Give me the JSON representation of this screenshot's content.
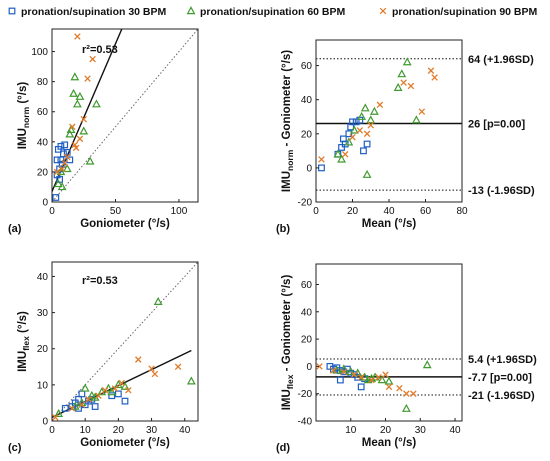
{
  "legend": {
    "items": [
      {
        "label": "pronation/supination 30 BPM",
        "marker": "square",
        "color": "#1f5fc4"
      },
      {
        "label": "pronation/supination 60 BPM",
        "marker": "triangle",
        "color": "#3f9a2f"
      },
      {
        "label": "pronation/supination 90 BPM",
        "marker": "cross",
        "color": "#e07b2a"
      }
    ]
  },
  "chart_data": [
    {
      "panel": "(a)",
      "type": "scatter",
      "xlabel": "Goniometer (°/s)",
      "ylabel_main": "IMU",
      "ylabel_sub": "norm",
      "ylabel_tail": " (°/s)",
      "xlim": [
        0,
        115
      ],
      "ylim": [
        0,
        115
      ],
      "xticks": [
        0,
        50,
        100
      ],
      "yticks": [
        0,
        20,
        40,
        60,
        80,
        100
      ],
      "annotation": "r²=0.53",
      "fit_line": [
        [
          0,
          7
        ],
        [
          55,
          115
        ]
      ],
      "identity_line": true,
      "series": [
        {
          "marker": "square",
          "points": [
            [
              3,
              3
            ],
            [
              4,
              28
            ],
            [
              5,
              35
            ],
            [
              6,
              22
            ],
            [
              7,
              37
            ],
            [
              8,
              25
            ],
            [
              6,
              15
            ],
            [
              10,
              38
            ],
            [
              12,
              33
            ],
            [
              14,
              28
            ],
            [
              9,
              32
            ],
            [
              4,
              18
            ],
            [
              7,
              28
            ]
          ]
        },
        {
          "marker": "triangle",
          "points": [
            [
              5,
              12
            ],
            [
              7,
              20
            ],
            [
              8,
              10
            ],
            [
              12,
              22
            ],
            [
              14,
              45
            ],
            [
              15,
              48
            ],
            [
              17,
              72
            ],
            [
              18,
              83
            ],
            [
              20,
              65
            ],
            [
              22,
              70
            ],
            [
              25,
              47
            ],
            [
              30,
              27
            ],
            [
              35,
              65
            ]
          ]
        },
        {
          "marker": "cross",
          "points": [
            [
              4,
              20
            ],
            [
              8,
              22
            ],
            [
              12,
              30
            ],
            [
              16,
              50
            ],
            [
              18,
              38
            ],
            [
              20,
              110
            ],
            [
              22,
              42
            ],
            [
              25,
              55
            ],
            [
              28,
              82
            ],
            [
              32,
              95
            ],
            [
              19,
              36
            ],
            [
              10,
              26
            ]
          ]
        }
      ]
    },
    {
      "panel": "(b)",
      "type": "scatter",
      "xlabel": "Mean (°/s)",
      "ylabel_main": "IMU",
      "ylabel_sub": "norm",
      "ylabel_tail": " - Goniometer (°/s)",
      "xlim": [
        0,
        80
      ],
      "ylim": [
        -20,
        75
      ],
      "xticks": [
        0,
        20,
        40,
        60,
        80
      ],
      "yticks": [
        -20,
        0,
        20,
        40,
        60
      ],
      "hlines": [
        {
          "y": 64,
          "style": "dotted",
          "label": "64 (+1.96SD)"
        },
        {
          "y": 26,
          "style": "solid",
          "label": "26 [p=0.00]"
        },
        {
          "y": -13,
          "style": "dotted",
          "label": "-13 (-1.96SD)"
        }
      ],
      "series": [
        {
          "marker": "square",
          "points": [
            [
              3,
              0
            ],
            [
              12,
              8
            ],
            [
              14,
              12
            ],
            [
              15,
              17
            ],
            [
              16,
              14
            ],
            [
              18,
              20
            ],
            [
              20,
              27
            ],
            [
              22,
              27
            ],
            [
              24,
              28
            ],
            [
              26,
              10
            ],
            [
              28,
              14
            ],
            [
              19,
              24
            ]
          ]
        },
        {
          "marker": "triangle",
          "points": [
            [
              12,
              8
            ],
            [
              14,
              5
            ],
            [
              18,
              15
            ],
            [
              21,
              22
            ],
            [
              25,
              30
            ],
            [
              27,
              35
            ],
            [
              28,
              -4
            ],
            [
              30,
              28
            ],
            [
              32,
              33
            ],
            [
              45,
              47
            ],
            [
              50,
              62
            ],
            [
              55,
              28
            ],
            [
              47,
              55
            ]
          ]
        },
        {
          "marker": "cross",
          "points": [
            [
              3,
              5
            ],
            [
              16,
              8
            ],
            [
              20,
              18
            ],
            [
              24,
              22
            ],
            [
              28,
              20
            ],
            [
              30,
              25
            ],
            [
              35,
              37
            ],
            [
              48,
              50
            ],
            [
              52,
              48
            ],
            [
              58,
              33
            ],
            [
              63,
              57
            ],
            [
              65,
              53
            ]
          ]
        }
      ]
    },
    {
      "panel": "(c)",
      "type": "scatter",
      "xlabel": "Goniometer (°/s)",
      "ylabel_main": "IMU",
      "ylabel_sub": "flex",
      "ylabel_tail": " (°/s)",
      "xlim": [
        0,
        44
      ],
      "ylim": [
        0,
        44
      ],
      "xticks": [
        0,
        10,
        20,
        30,
        40
      ],
      "yticks": [
        0,
        10,
        20,
        30,
        40
      ],
      "annotation": "r²=0.53",
      "fit_line": [
        [
          0,
          1
        ],
        [
          42,
          19.5
        ]
      ],
      "identity_line": true,
      "series": [
        {
          "marker": "square",
          "points": [
            [
              4,
              3.5
            ],
            [
              6,
              4
            ],
            [
              7,
              5
            ],
            [
              8,
              6
            ],
            [
              9,
              7.5
            ],
            [
              10,
              4.5
            ],
            [
              11,
              5.5
            ],
            [
              12,
              6
            ],
            [
              13,
              4
            ],
            [
              18,
              7
            ],
            [
              20,
              7.5
            ],
            [
              22,
              5.5
            ],
            [
              8,
              3.5
            ]
          ]
        },
        {
          "marker": "triangle",
          "points": [
            [
              2,
              2
            ],
            [
              7,
              4
            ],
            [
              9,
              5
            ],
            [
              10,
              9
            ],
            [
              12,
              7
            ],
            [
              13,
              6.5
            ],
            [
              15,
              8
            ],
            [
              17,
              9
            ],
            [
              18,
              8
            ],
            [
              20,
              10
            ],
            [
              22,
              9.5
            ],
            [
              32,
              33
            ],
            [
              42,
              11
            ]
          ]
        },
        {
          "marker": "cross",
          "points": [
            [
              1,
              1
            ],
            [
              6,
              3.5
            ],
            [
              9,
              4.5
            ],
            [
              11,
              6
            ],
            [
              14,
              7
            ],
            [
              16,
              8.5
            ],
            [
              19,
              9
            ],
            [
              21,
              10.5
            ],
            [
              23,
              8.5
            ],
            [
              26,
              17
            ],
            [
              30,
              14.5
            ],
            [
              31,
              13
            ],
            [
              38,
              15
            ]
          ]
        }
      ]
    },
    {
      "panel": "(d)",
      "type": "scatter",
      "xlabel": "Mean (°/s)",
      "ylabel_main": "IMU",
      "ylabel_sub": "flex",
      "ylabel_tail": " - Goniometer (°/s)",
      "xlim": [
        0,
        42
      ],
      "ylim": [
        -40,
        75
      ],
      "xticks": [
        10,
        20,
        30,
        40
      ],
      "yticks": [
        -40,
        -20,
        0,
        20,
        40,
        60
      ],
      "hlines": [
        {
          "y": 5.4,
          "style": "dotted",
          "label": "5.4 (+1.96SD)"
        },
        {
          "y": -7.7,
          "style": "solid",
          "label": "-7.7 [p=0.00]"
        },
        {
          "y": -21,
          "style": "dotted",
          "label": "-21 (-1.96SD)"
        }
      ],
      "series": [
        {
          "marker": "square",
          "points": [
            [
              4,
              0
            ],
            [
              5,
              -2
            ],
            [
              6,
              -1
            ],
            [
              7,
              -3
            ],
            [
              8,
              -4
            ],
            [
              9,
              -2
            ],
            [
              10,
              -5
            ],
            [
              11,
              -6
            ],
            [
              12,
              -8
            ],
            [
              13,
              -15
            ],
            [
              14,
              -9
            ],
            [
              7,
              -10
            ]
          ]
        },
        {
          "marker": "triangle",
          "points": [
            [
              6,
              -3
            ],
            [
              8,
              -2
            ],
            [
              10,
              -4
            ],
            [
              12,
              -5
            ],
            [
              14,
              -8
            ],
            [
              15,
              -10
            ],
            [
              16,
              -9
            ],
            [
              17,
              -8
            ],
            [
              19,
              -10
            ],
            [
              21,
              -11
            ],
            [
              26,
              -31
            ],
            [
              32,
              1
            ]
          ]
        },
        {
          "marker": "cross",
          "points": [
            [
              1,
              0
            ],
            [
              5,
              -3
            ],
            [
              8,
              -4
            ],
            [
              11,
              -6
            ],
            [
              13,
              -8
            ],
            [
              16,
              -10
            ],
            [
              18,
              -8
            ],
            [
              20,
              -6
            ],
            [
              21,
              -15
            ],
            [
              24,
              -16
            ],
            [
              26,
              -20
            ],
            [
              28,
              -20
            ]
          ]
        }
      ]
    }
  ]
}
